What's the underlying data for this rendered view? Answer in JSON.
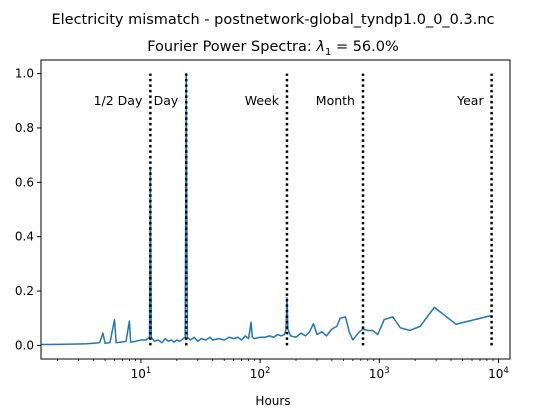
{
  "chart_data": {
    "type": "line",
    "suptitle": "Electricity mismatch - postnetwork-global_tyndp1.0_0_0.3.nc",
    "title_prefix": "Fourier Power Spectra: ",
    "title_lambda": "λ",
    "title_sub": "1",
    "title_suffix": " = 56.0%",
    "xlabel": "Hours",
    "ylabel": "",
    "xscale": "log",
    "xlim": [
      1.45,
      12500
    ],
    "ylim": [
      -0.05,
      1.05
    ],
    "grid": false,
    "line_color": "#1f77b4",
    "x_ticks": [
      {
        "value": 10,
        "base": "10",
        "exp": "1"
      },
      {
        "value": 100,
        "base": "10",
        "exp": "2"
      },
      {
        "value": 1000,
        "base": "10",
        "exp": "3"
      },
      {
        "value": 10000,
        "base": "10",
        "exp": "4"
      }
    ],
    "y_ticks": [
      {
        "value": 0.0,
        "label": "0.0"
      },
      {
        "value": 0.2,
        "label": "0.2"
      },
      {
        "value": 0.4,
        "label": "0.4"
      },
      {
        "value": 0.6,
        "label": "0.6"
      },
      {
        "value": 0.8,
        "label": "0.8"
      },
      {
        "value": 1.0,
        "label": "1.0"
      }
    ],
    "reference_lines": [
      {
        "x": 12,
        "label": "1/2 Day",
        "label_side": "left"
      },
      {
        "x": 24,
        "label": "Day",
        "label_side": "left"
      },
      {
        "x": 168,
        "label": "Week",
        "label_side": "left"
      },
      {
        "x": 730,
        "label": "Month",
        "label_side": "left"
      },
      {
        "x": 8760,
        "label": "Year",
        "label_side": "left"
      }
    ],
    "series": [
      {
        "points": [
          [
            1.0,
            0.003
          ],
          [
            2.0,
            0.004
          ],
          [
            3.0,
            0.005
          ],
          [
            3.5,
            0.006
          ],
          [
            4.0,
            0.008
          ],
          [
            4.5,
            0.01
          ],
          [
            4.8,
            0.045
          ],
          [
            5.0,
            0.008
          ],
          [
            5.5,
            0.01
          ],
          [
            6.0,
            0.095
          ],
          [
            6.2,
            0.01
          ],
          [
            6.8,
            0.012
          ],
          [
            7.5,
            0.015
          ],
          [
            8.0,
            0.09
          ],
          [
            8.2,
            0.012
          ],
          [
            9.0,
            0.015
          ],
          [
            10.0,
            0.02
          ],
          [
            11.0,
            0.02
          ],
          [
            11.8,
            0.03
          ],
          [
            12.0,
            0.65
          ],
          [
            12.2,
            0.03
          ],
          [
            13.0,
            0.015
          ],
          [
            14.0,
            0.02
          ],
          [
            15.0,
            0.01
          ],
          [
            16.0,
            0.025
          ],
          [
            17.0,
            0.015
          ],
          [
            18.0,
            0.02
          ],
          [
            19.0,
            0.012
          ],
          [
            20.0,
            0.02
          ],
          [
            21.0,
            0.015
          ],
          [
            22.0,
            0.02
          ],
          [
            23.5,
            0.03
          ],
          [
            24.0,
            1.0
          ],
          [
            24.5,
            0.03
          ],
          [
            26.0,
            0.02
          ],
          [
            28.0,
            0.03
          ],
          [
            30.0,
            0.015
          ],
          [
            32.0,
            0.025
          ],
          [
            35.0,
            0.02
          ],
          [
            38.0,
            0.03
          ],
          [
            40.0,
            0.02
          ],
          [
            45.0,
            0.025
          ],
          [
            50.0,
            0.02
          ],
          [
            55.0,
            0.03
          ],
          [
            60.0,
            0.025
          ],
          [
            65.0,
            0.03
          ],
          [
            70.0,
            0.02
          ],
          [
            75.0,
            0.035
          ],
          [
            80.0,
            0.025
          ],
          [
            84.0,
            0.085
          ],
          [
            86.0,
            0.03
          ],
          [
            90.0,
            0.025
          ],
          [
            100.0,
            0.03
          ],
          [
            110.0,
            0.03
          ],
          [
            120.0,
            0.035
          ],
          [
            130.0,
            0.03
          ],
          [
            140.0,
            0.04
          ],
          [
            150.0,
            0.035
          ],
          [
            160.0,
            0.04
          ],
          [
            165.0,
            0.06
          ],
          [
            168.0,
            0.175
          ],
          [
            171.0,
            0.06
          ],
          [
            180.0,
            0.035
          ],
          [
            200.0,
            0.03
          ],
          [
            220.0,
            0.045
          ],
          [
            240.0,
            0.035
          ],
          [
            260.0,
            0.05
          ],
          [
            280.0,
            0.08
          ],
          [
            300.0,
            0.04
          ],
          [
            330.0,
            0.05
          ],
          [
            360.0,
            0.035
          ],
          [
            400.0,
            0.06
          ],
          [
            440.0,
            0.07
          ],
          [
            470.0,
            0.1
          ],
          [
            520.0,
            0.105
          ],
          [
            560.0,
            0.05
          ],
          [
            600.0,
            0.02
          ],
          [
            680.0,
            0.05
          ],
          [
            730.0,
            0.06
          ],
          [
            800.0,
            0.055
          ],
          [
            880.0,
            0.055
          ],
          [
            970.0,
            0.04
          ],
          [
            1100.0,
            0.095
          ],
          [
            1300.0,
            0.105
          ],
          [
            1500.0,
            0.065
          ],
          [
            1800.0,
            0.055
          ],
          [
            2200.0,
            0.07
          ],
          [
            2900.0,
            0.14
          ],
          [
            4400.0,
            0.078
          ],
          [
            8760.0,
            0.11
          ]
        ]
      }
    ]
  }
}
